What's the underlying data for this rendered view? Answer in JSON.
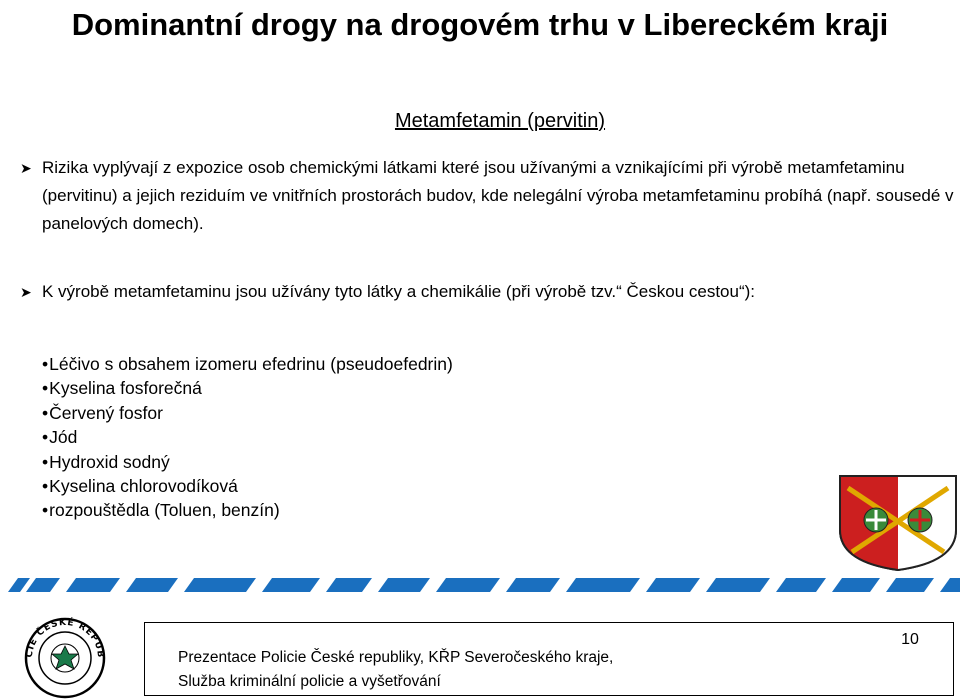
{
  "title": "Dominantní drogy na drogovém trhu v Libereckém kraji",
  "subtitle": "Metamfetamin (pervitin)",
  "paragraphs": [
    "Rizika vyplývají z expozice osob chemickými látkami které jsou užívanými a vznikajícími při výrobě metamfetaminu (pervitinu) a jejich reziduím ve vnitřních prostorách budov, kde nelegální výroba metamfetaminu probíhá (např. sousedé v panelových domech).",
    "K výrobě metamfetaminu jsou užívány tyto látky  a chemikálie (při výrobě tzv.“ Českou cestou“):"
  ],
  "list_items": [
    "Léčivo s obsahem izomeru efedrinu (pseudoefedrin)",
    "Kyselina fosforečná",
    "Červený fosfor",
    "Jód",
    "Hydroxid sodný",
    "Kyselina chlorovodíková",
    "rozpouštědla (Toluen, benzín)"
  ],
  "footer": {
    "line1": "Prezentace Policie České republiky, KŘP Severočeského kraje,",
    "line2": "Služba kriminální policie a vyšetřování",
    "page_number": "10"
  },
  "logo": {
    "ring_text": "POLICIE ČESKÉ REPUBLIKY"
  },
  "colors": {
    "stripe_blue": "#1a6fbf",
    "crest_red": "#cc1f1f",
    "crest_gold": "#e0a800",
    "crest_green": "#3a8a3a"
  }
}
